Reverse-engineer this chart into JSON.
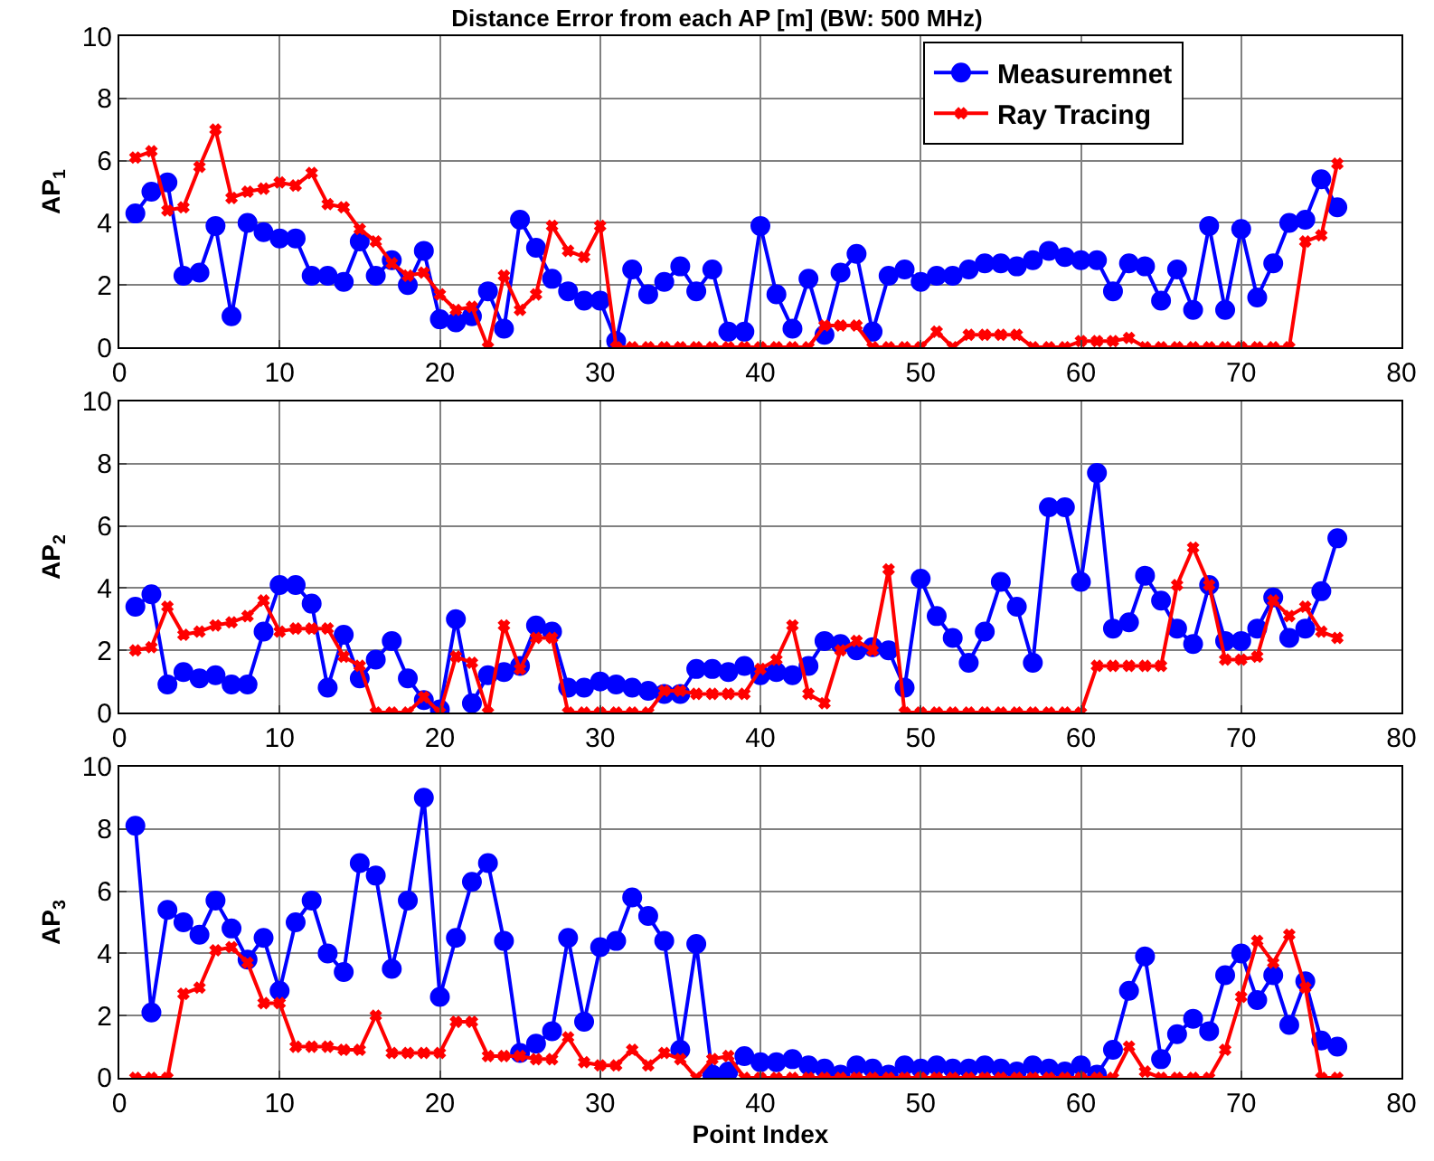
{
  "chart_data": [
    {
      "type": "line",
      "title": "Distance Error from each AP [m] (BW: 500 MHz)",
      "ylabel": "AP$_{1}$",
      "xlim": [
        0,
        80
      ],
      "xticks": [
        0,
        10,
        20,
        30,
        40,
        50,
        60,
        70,
        80
      ],
      "ylim": [
        0,
        10
      ],
      "yticks": [
        0,
        2,
        4,
        6,
        8,
        10
      ],
      "grid": true,
      "legend": "top right",
      "line_style": "solid",
      "x": [
        1,
        2,
        3,
        4,
        5,
        6,
        7,
        8,
        9,
        10,
        11,
        12,
        13,
        14,
        15,
        16,
        17,
        18,
        19,
        20,
        21,
        22,
        23,
        24,
        25,
        26,
        27,
        28,
        29,
        30,
        31,
        32,
        33,
        34,
        35,
        36,
        37,
        38,
        39,
        40,
        41,
        42,
        43,
        44,
        45,
        46,
        47,
        48,
        49,
        50,
        51,
        52,
        53,
        54,
        55,
        56,
        57,
        58,
        59,
        60,
        61,
        62,
        63,
        64,
        65,
        66,
        67,
        68,
        69,
        70,
        71,
        72,
        73,
        74,
        75,
        76
      ],
      "series": [
        {
          "name": "Measuremnet",
          "color": "#0000ff",
          "marker": "circle",
          "values": [
            4.3,
            5.0,
            5.3,
            2.3,
            2.4,
            3.9,
            1.0,
            4.0,
            3.7,
            3.5,
            3.5,
            2.3,
            2.3,
            2.1,
            3.4,
            2.3,
            2.8,
            2.0,
            3.1,
            0.9,
            0.8,
            1.0,
            1.8,
            0.6,
            4.1,
            3.2,
            2.2,
            1.8,
            1.5,
            1.5,
            0.2,
            2.5,
            1.7,
            2.1,
            2.6,
            1.8,
            2.5,
            0.5,
            0.5,
            3.9,
            1.7,
            0.6,
            2.2,
            0.4,
            2.4,
            3.0,
            0.5,
            2.3,
            2.5,
            2.1,
            2.3,
            2.3,
            2.5,
            2.7,
            2.7,
            2.6,
            2.8,
            3.1,
            2.9,
            2.8,
            2.8,
            1.8,
            2.7,
            2.6,
            1.5,
            2.5,
            1.2,
            3.9,
            1.2,
            3.8,
            1.6,
            2.7,
            4.0,
            4.1,
            5.4,
            4.5
          ]
        },
        {
          "name": "Ray Tracing",
          "color": "#ff0000",
          "marker": "cross",
          "values": [
            6.1,
            6.3,
            4.4,
            4.5,
            5.8,
            7.0,
            4.8,
            5.0,
            5.1,
            5.3,
            5.2,
            5.6,
            4.6,
            4.5,
            3.8,
            3.4,
            2.7,
            2.3,
            2.4,
            1.7,
            1.2,
            1.3,
            0,
            2.3,
            1.2,
            1.7,
            3.9,
            3.1,
            2.9,
            3.9,
            0,
            0,
            0,
            0,
            0,
            0,
            0,
            0,
            0,
            0,
            0,
            0,
            0,
            0.7,
            0.7,
            0.7,
            0,
            0,
            0,
            0,
            0.5,
            0,
            0.4,
            0.4,
            0.4,
            0.4,
            0,
            0,
            0,
            0.2,
            0.2,
            0.2,
            0.3,
            0,
            0,
            0,
            0,
            0,
            0,
            0,
            0,
            0,
            0,
            3.4,
            3.6,
            5.9
          ]
        }
      ]
    },
    {
      "type": "line",
      "ylabel": "AP$_{2}$",
      "xlim": [
        0,
        80
      ],
      "xticks": [
        0,
        10,
        20,
        30,
        40,
        50,
        60,
        70,
        80
      ],
      "ylim": [
        0,
        10
      ],
      "yticks": [
        0,
        2,
        4,
        6,
        8,
        10
      ],
      "grid": true,
      "line_style": "solid",
      "x": [
        1,
        2,
        3,
        4,
        5,
        6,
        7,
        8,
        9,
        10,
        11,
        12,
        13,
        14,
        15,
        16,
        17,
        18,
        19,
        20,
        21,
        22,
        23,
        24,
        25,
        26,
        27,
        28,
        29,
        30,
        31,
        32,
        33,
        34,
        35,
        36,
        37,
        38,
        39,
        40,
        41,
        42,
        43,
        44,
        45,
        46,
        47,
        48,
        49,
        50,
        51,
        52,
        53,
        54,
        55,
        56,
        57,
        58,
        59,
        60,
        61,
        62,
        63,
        64,
        65,
        66,
        67,
        68,
        69,
        70,
        71,
        72,
        73,
        74,
        75,
        76
      ],
      "series": [
        {
          "color": "#0000ff",
          "marker": "circle",
          "values": [
            3.4,
            3.8,
            0.9,
            1.3,
            1.1,
            1.2,
            0.9,
            0.9,
            2.6,
            4.1,
            4.1,
            3.5,
            0.8,
            2.5,
            1.1,
            1.7,
            2.3,
            1.1,
            0.4,
            0.1,
            3.0,
            0.3,
            1.2,
            1.3,
            1.5,
            2.8,
            2.6,
            0.8,
            0.8,
            1.0,
            0.9,
            0.8,
            0.7,
            0.6,
            0.6,
            1.4,
            1.4,
            1.3,
            1.5,
            1.2,
            1.3,
            1.2,
            1.5,
            2.3,
            2.2,
            2.0,
            2.1,
            2.0,
            0.8,
            4.3,
            3.1,
            2.4,
            1.6,
            2.6,
            4.2,
            3.4,
            1.6,
            6.6,
            6.6,
            4.2,
            7.7,
            2.7,
            2.9,
            4.4,
            3.6,
            2.7,
            2.2,
            4.1,
            2.3,
            2.3,
            2.7,
            3.7,
            2.4,
            2.7,
            3.9,
            5.6
          ]
        },
        {
          "color": "#ff0000",
          "marker": "cross",
          "values": [
            2.0,
            2.1,
            3.4,
            2.5,
            2.6,
            2.8,
            2.9,
            3.1,
            3.6,
            2.6,
            2.7,
            2.7,
            2.7,
            1.8,
            1.5,
            0,
            0,
            0,
            0.5,
            0,
            1.8,
            1.6,
            0,
            2.8,
            1.4,
            2.4,
            2.4,
            0,
            0,
            0,
            0,
            0,
            0,
            0.7,
            0.7,
            0.6,
            0.6,
            0.6,
            0.6,
            1.4,
            1.7,
            2.8,
            0.6,
            0.3,
            2.0,
            2.3,
            2.0,
            4.6,
            0,
            0,
            0,
            0,
            0,
            0,
            0,
            0,
            0,
            0,
            0,
            0,
            1.5,
            1.5,
            1.5,
            1.5,
            1.5,
            4.1,
            5.3,
            4.1,
            1.7,
            1.7,
            1.8,
            3.6,
            3.1,
            3.4,
            2.6,
            2.4
          ]
        }
      ]
    },
    {
      "type": "line",
      "ylabel": "AP$_{3}$",
      "xlabel": "Point Index",
      "xlim": [
        0,
        80
      ],
      "xticks": [
        0,
        10,
        20,
        30,
        40,
        50,
        60,
        70,
        80
      ],
      "ylim": [
        0,
        10
      ],
      "yticks": [
        0,
        2,
        4,
        6,
        8,
        10
      ],
      "grid": true,
      "line_style": "solid",
      "x": [
        1,
        2,
        3,
        4,
        5,
        6,
        7,
        8,
        9,
        10,
        11,
        12,
        13,
        14,
        15,
        16,
        17,
        18,
        19,
        20,
        21,
        22,
        23,
        24,
        25,
        26,
        27,
        28,
        29,
        30,
        31,
        32,
        33,
        34,
        35,
        36,
        37,
        38,
        39,
        40,
        41,
        42,
        43,
        44,
        45,
        46,
        47,
        48,
        49,
        50,
        51,
        52,
        53,
        54,
        55,
        56,
        57,
        58,
        59,
        60,
        61,
        62,
        63,
        64,
        65,
        66,
        67,
        68,
        69,
        70,
        71,
        72,
        73,
        74,
        75,
        76
      ],
      "series": [
        {
          "color": "#0000ff",
          "marker": "circle",
          "values": [
            8.1,
            2.1,
            5.4,
            5.0,
            4.6,
            5.7,
            4.8,
            3.8,
            4.5,
            2.8,
            5.0,
            5.7,
            4.0,
            3.4,
            6.9,
            6.5,
            3.5,
            5.7,
            9.0,
            2.6,
            4.5,
            6.3,
            6.9,
            4.4,
            0.8,
            1.1,
            1.5,
            4.5,
            1.8,
            4.2,
            4.4,
            5.8,
            5.2,
            4.4,
            0.9,
            4.3,
            0.1,
            0.2,
            0.7,
            0.5,
            0.5,
            0.6,
            0.4,
            0.3,
            0.1,
            0.4,
            0.3,
            0.1,
            0.4,
            0.3,
            0.4,
            0.3,
            0.3,
            0.4,
            0.3,
            0.2,
            0.4,
            0.3,
            0.2,
            0.4,
            0.1,
            0.9,
            2.8,
            3.9,
            0.6,
            1.4,
            1.9,
            1.5,
            3.3,
            4.0,
            2.5,
            3.3,
            1.7,
            3.1,
            1.2,
            1.0
          ]
        },
        {
          "color": "#ff0000",
          "marker": "cross",
          "values": [
            0,
            0,
            0,
            2.7,
            2.9,
            4.1,
            4.2,
            3.7,
            2.4,
            2.4,
            1.0,
            1.0,
            1.0,
            0.9,
            0.9,
            2.0,
            0.8,
            0.8,
            0.8,
            0.8,
            1.8,
            1.8,
            0.7,
            0.7,
            0.7,
            0.6,
            0.6,
            1.3,
            0.5,
            0.4,
            0.4,
            0.9,
            0.4,
            0.8,
            0.6,
            0,
            0.6,
            0.7,
            0,
            0,
            0,
            0,
            0,
            0,
            0,
            0,
            0,
            0,
            0,
            0,
            0,
            0,
            0,
            0,
            0,
            0,
            0,
            0,
            0,
            0,
            0,
            0,
            1.0,
            0.2,
            0,
            0,
            0,
            0,
            0.9,
            2.6,
            4.4,
            3.7,
            4.6,
            2.9,
            0,
            0
          ]
        }
      ]
    }
  ]
}
